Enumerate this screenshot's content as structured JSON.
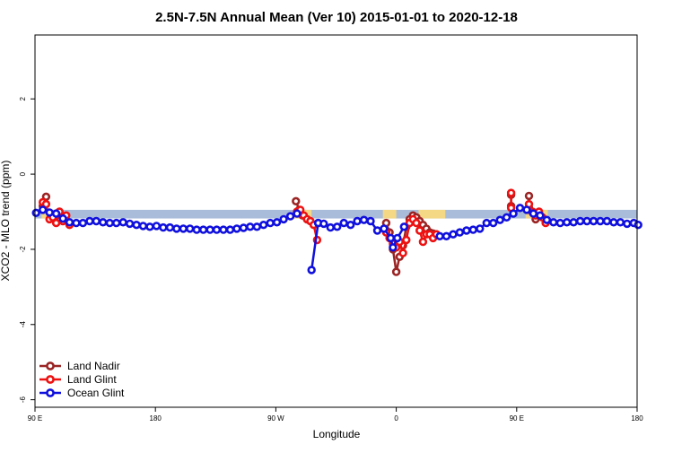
{
  "chart_data": {
    "type": "line",
    "title": "2.5N-7.5N Annual Mean (Ver 10)   2015-01-01 to 2020-12-18",
    "xlabel": "Longitude",
    "ylabel": "XCO2 - MLO trend (ppm)",
    "xlim": [
      -90,
      180
    ],
    "ylim": [
      -6.2,
      3.7
    ],
    "x_ticks": [
      {
        "value": -90,
        "label": "90 E"
      },
      {
        "value": -36,
        "label": "180"
      },
      {
        "value": 18,
        "label": "90 W"
      },
      {
        "value": 72,
        "label": "0"
      },
      {
        "value": 126,
        "label": "90 E"
      },
      {
        "value": 180,
        "label": "180"
      }
    ],
    "y_ticks": [
      {
        "value": 2,
        "label": "2"
      },
      {
        "value": 0,
        "label": "0"
      },
      {
        "value": -2,
        "label": "-2"
      },
      {
        "value": -4,
        "label": "-4"
      },
      {
        "value": -6,
        "label": "-6"
      }
    ],
    "grid": false,
    "legend_position": "bottom-left",
    "background_band": {
      "ymin": -1.18,
      "ymax": -0.95,
      "ocean_color": "#a9bcd9",
      "land_color": "#f5d886"
    },
    "land_segments": [
      [
        -87,
        -80
      ],
      [
        26,
        34
      ],
      [
        66,
        72
      ],
      [
        82,
        94
      ],
      [
        130,
        140
      ]
    ],
    "series": [
      {
        "name": "Land Nadir",
        "color": "#9b2424",
        "segments": [
          [
            [
              -86.5,
              -0.85
            ],
            [
              -85,
              -0.6
            ]
          ],
          [
            [
              27,
              -0.72
            ],
            [
              28.5,
              -0.95
            ],
            [
              30,
              -1.1
            ],
            [
              32,
              -1.2
            ]
          ],
          [
            [
              67.5,
              -1.3
            ],
            [
              69,
              -1.55
            ],
            [
              70.5,
              -2.0
            ],
            [
              72,
              -2.6
            ],
            [
              73.5,
              -2.2
            ],
            [
              75,
              -1.9
            ],
            [
              76.5,
              -1.4
            ],
            [
              78,
              -1.2
            ],
            [
              79.5,
              -1.1
            ],
            [
              81,
              -1.15
            ],
            [
              82.5,
              -1.25
            ],
            [
              84,
              -1.35
            ],
            [
              85.5,
              -1.45
            ],
            [
              87,
              -1.55
            ],
            [
              88.5,
              -1.58
            ],
            [
              90,
              -1.6
            ]
          ],
          [
            [
              123.5,
              -0.55
            ],
            [
              123.5,
              -0.85
            ]
          ],
          [
            [
              131.5,
              -0.58
            ],
            [
              131.5,
              -0.9
            ],
            [
              133,
              -1.0
            ],
            [
              134.5,
              -1.2
            ]
          ]
        ]
      },
      {
        "name": "Land Glint",
        "color": "#ee1111",
        "segments": [
          [
            [
              -86.5,
              -0.75
            ],
            [
              -85,
              -0.8
            ],
            [
              -83.5,
              -1.2
            ],
            [
              -82,
              -1.15
            ],
            [
              -80.5,
              -1.3
            ],
            [
              -79,
              -1.0
            ],
            [
              -77.5,
              -1.25
            ],
            [
              -76,
              -1.1
            ],
            [
              -74.5,
              -1.35
            ]
          ],
          [
            [
              27.5,
              -1.0
            ],
            [
              29,
              -0.95
            ],
            [
              30.5,
              -1.1
            ],
            [
              32,
              -1.2
            ],
            [
              33.5,
              -1.25
            ],
            [
              35,
              -1.35
            ],
            [
              36.5,
              -1.75
            ]
          ],
          [
            [
              67.5,
              -1.55
            ],
            [
              69,
              -1.7
            ],
            [
              70.5,
              -1.85
            ],
            [
              72,
              -1.95
            ],
            [
              73.5,
              -1.8
            ],
            [
              75,
              -2.1
            ],
            [
              76.5,
              -1.75
            ],
            [
              78,
              -1.3
            ],
            [
              79.5,
              -1.2
            ],
            [
              81,
              -1.3
            ],
            [
              82.5,
              -1.5
            ],
            [
              84,
              -1.8
            ],
            [
              85.5,
              -1.6
            ],
            [
              87,
              -1.6
            ],
            [
              88.5,
              -1.7
            ],
            [
              90,
              -1.6
            ]
          ],
          [
            [
              123.5,
              -0.5
            ],
            [
              123.5,
              -0.9
            ]
          ],
          [
            [
              131.5,
              -0.8
            ],
            [
              133,
              -1.0
            ],
            [
              134.5,
              -1.1
            ],
            [
              136,
              -1.0
            ],
            [
              137.5,
              -1.15
            ],
            [
              139,
              -1.3
            ]
          ]
        ]
      },
      {
        "name": "Ocean Glint",
        "color": "#1010dd",
        "segments": [
          [
            [
              -89.5,
              -1.03
            ],
            [
              -86.5,
              -0.95
            ],
            [
              -83.5,
              -1.02
            ],
            [
              -80.5,
              -1.05
            ],
            [
              -77.5,
              -1.18
            ],
            [
              -74.5,
              -1.28
            ],
            [
              -71.5,
              -1.3
            ],
            [
              -68.5,
              -1.3
            ],
            [
              -65.5,
              -1.25
            ],
            [
              -62.5,
              -1.25
            ],
            [
              -59.5,
              -1.28
            ],
            [
              -56.5,
              -1.3
            ],
            [
              -53.5,
              -1.3
            ],
            [
              -50.5,
              -1.28
            ],
            [
              -47.5,
              -1.32
            ],
            [
              -44.5,
              -1.35
            ],
            [
              -41.5,
              -1.38
            ],
            [
              -38.5,
              -1.4
            ],
            [
              -35.5,
              -1.38
            ],
            [
              -32.5,
              -1.42
            ],
            [
              -29.5,
              -1.42
            ],
            [
              -26.5,
              -1.45
            ],
            [
              -23.5,
              -1.45
            ],
            [
              -20.5,
              -1.45
            ],
            [
              -17.5,
              -1.48
            ],
            [
              -14.5,
              -1.48
            ],
            [
              -11.5,
              -1.48
            ],
            [
              -8.5,
              -1.48
            ],
            [
              -5.5,
              -1.48
            ],
            [
              -2.5,
              -1.48
            ],
            [
              0.5,
              -1.45
            ],
            [
              3.5,
              -1.43
            ],
            [
              6.5,
              -1.4
            ],
            [
              9.5,
              -1.4
            ],
            [
              12.5,
              -1.35
            ],
            [
              15.5,
              -1.3
            ],
            [
              18.5,
              -1.28
            ],
            [
              21.5,
              -1.2
            ],
            [
              24.5,
              -1.12
            ],
            [
              27.5,
              -1.05
            ]
          ],
          [
            [
              34,
              -2.55
            ],
            [
              37,
              -1.3
            ]
          ],
          [
            [
              37,
              -1.3
            ],
            [
              39.5,
              -1.32
            ],
            [
              42.5,
              -1.42
            ],
            [
              45.5,
              -1.4
            ],
            [
              48.5,
              -1.3
            ],
            [
              51.5,
              -1.35
            ],
            [
              54.5,
              -1.25
            ],
            [
              57.5,
              -1.22
            ],
            [
              60.5,
              -1.25
            ],
            [
              63.5,
              -1.5
            ],
            [
              66.5,
              -1.45
            ],
            [
              69.5,
              -1.7
            ],
            [
              70.5,
              -1.95
            ],
            [
              72.5,
              -1.7
            ],
            [
              75.5,
              -1.4
            ]
          ],
          [
            [
              91.5,
              -1.65
            ],
            [
              94.5,
              -1.65
            ],
            [
              97.5,
              -1.6
            ],
            [
              100.5,
              -1.55
            ],
            [
              103.5,
              -1.5
            ],
            [
              106.5,
              -1.48
            ],
            [
              109.5,
              -1.45
            ],
            [
              112.5,
              -1.3
            ],
            [
              115.5,
              -1.3
            ],
            [
              118.5,
              -1.22
            ],
            [
              121.5,
              -1.15
            ],
            [
              124.5,
              -1.05
            ],
            [
              127.5,
              -0.9
            ],
            [
              130.5,
              -0.95
            ],
            [
              133.5,
              -1.05
            ],
            [
              136.5,
              -1.1
            ],
            [
              139.5,
              -1.22
            ],
            [
              142.5,
              -1.28
            ],
            [
              145.5,
              -1.3
            ],
            [
              148.5,
              -1.28
            ],
            [
              151.5,
              -1.28
            ],
            [
              154.5,
              -1.25
            ],
            [
              157.5,
              -1.25
            ],
            [
              160.5,
              -1.25
            ],
            [
              163.5,
              -1.25
            ],
            [
              166.5,
              -1.25
            ],
            [
              169.5,
              -1.28
            ],
            [
              172.5,
              -1.28
            ],
            [
              175.5,
              -1.32
            ],
            [
              178.5,
              -1.3
            ],
            [
              180.5,
              -1.35
            ]
          ]
        ]
      }
    ]
  }
}
